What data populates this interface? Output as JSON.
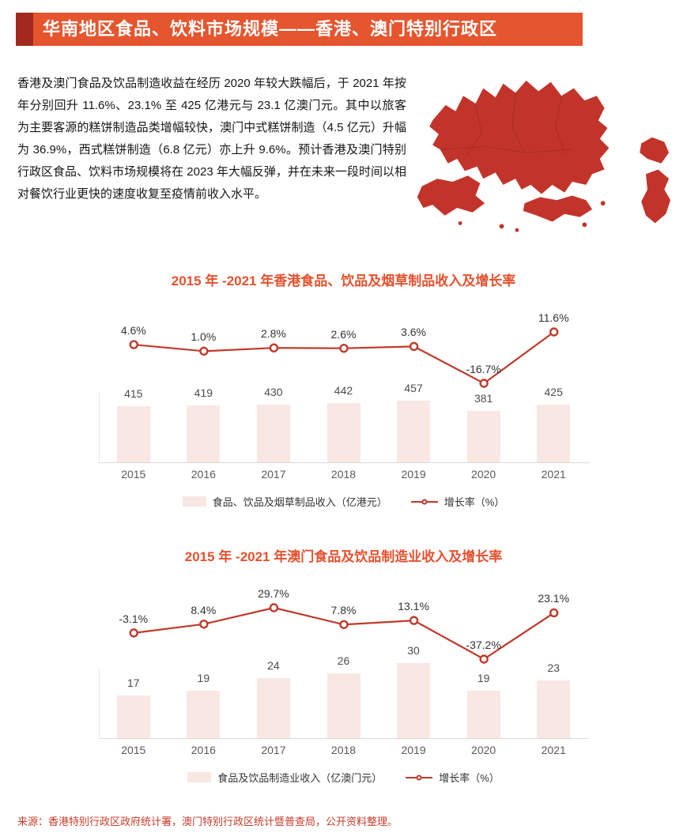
{
  "page": {
    "header_title": "华南地区食品、饮料市场规模——香港、澳门特别行政区",
    "intro_text": "香港及澳门食品及饮品制造收益在经历 2020 年较大跌幅后，于 2021 年按年分别回升 11.6%、23.1% 至 425 亿港元与 23.1 亿澳门元。其中以旅客为主要客源的糕饼制造品类增幅较快，澳门中式糕饼制造（4.5 亿元）升幅为 36.9%，西式糕饼制造（6.8 亿元）亦上升 9.6%。预计香港及澳门特别行政区食品、饮料市场规模将在 2023 年大幅反弹，并在未来一段时间以相对餐饮行业更快的速度收复至疫情前收入水平。",
    "source_text": "来源：香港特别行政区政府统计署，澳门特别行政区统计暨普查局，公开资料整理。"
  },
  "colors": {
    "banner": "#e5552e",
    "banner_dark_square": "#a2291e",
    "chart_title": "#e5512e",
    "bar_fill": "#f8e7e3",
    "line": "#bf3a2b",
    "source_text": "#c73a28",
    "map_fill": "#c2342a"
  },
  "chart_data": [
    {
      "type": "bar",
      "title": "2015 年 -2021 年香港食品、饮品及烟草制品收入及增长率",
      "categories": [
        "2015",
        "2016",
        "2017",
        "2018",
        "2019",
        "2020",
        "2021"
      ],
      "series": [
        {
          "name": "食品、饮品及烟草制品收入（亿港元）",
          "type": "bar",
          "values": [
            415,
            419,
            430,
            442,
            457,
            381,
            425
          ]
        },
        {
          "name": "增长率（%）",
          "type": "line",
          "values": [
            4.6,
            1.0,
            2.8,
            2.6,
            3.6,
            -16.7,
            11.6
          ],
          "labels": [
            "4.6%",
            "1.0%",
            "2.8%",
            "2.6%",
            "3.6%",
            "-16.7%",
            "11.6%"
          ]
        }
      ],
      "legend_position": "bottom",
      "grid": false
    },
    {
      "type": "bar",
      "title": "2015 年 -2021 年澳门食品及饮品制造业收入及增长率",
      "categories": [
        "2015",
        "2016",
        "2017",
        "2018",
        "2019",
        "2020",
        "2021"
      ],
      "series": [
        {
          "name": "食品及饮品制造业收入（亿澳门元）",
          "type": "bar",
          "values": [
            17,
            19,
            24,
            26,
            30,
            19,
            23
          ]
        },
        {
          "name": "增长率（%）",
          "type": "line",
          "values": [
            -3.1,
            8.4,
            29.7,
            7.8,
            13.1,
            -37.2,
            23.1
          ],
          "labels": [
            "-3.1%",
            "8.4%",
            "29.7%",
            "7.8%",
            "13.1%",
            "-37.2%",
            "23.1%"
          ]
        }
      ],
      "legend_position": "bottom",
      "grid": false
    }
  ]
}
